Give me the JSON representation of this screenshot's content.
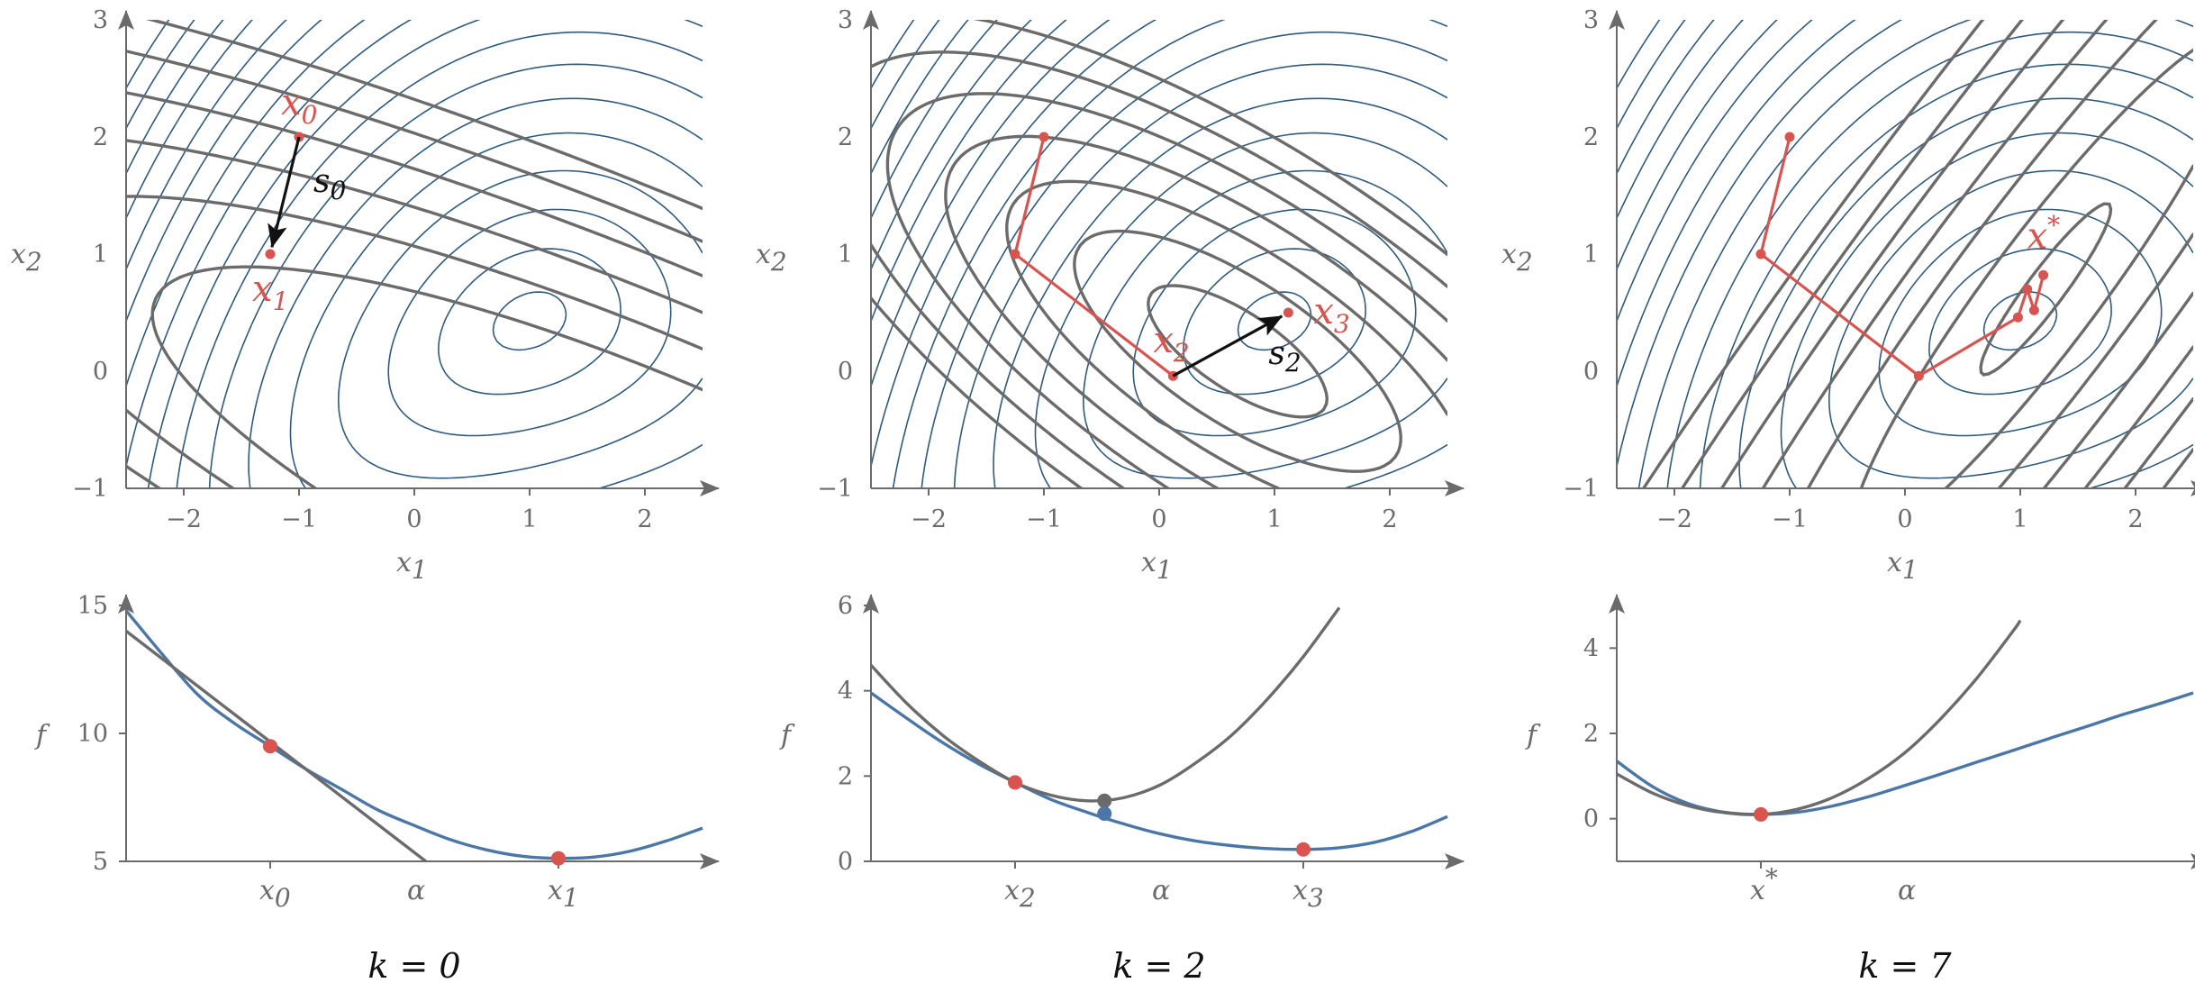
{
  "colors": {
    "contour": "#2e5a80",
    "model": "#6b6b6b",
    "path": "#d9534f",
    "function": "#4a76a8",
    "axis": "#6b6b6b"
  },
  "chart_data": [
    {
      "type": "contour",
      "panel": "top-left",
      "xlabel": "x1",
      "ylabel": "x2",
      "xlim": [
        -2.5,
        2.5
      ],
      "ylim": [
        -1,
        3
      ],
      "xticks": [
        "−2",
        "−1",
        "0",
        "1",
        "2"
      ],
      "yticks": [
        "−1",
        "0",
        "1",
        "2",
        "3"
      ],
      "path": [
        [
          -1.0,
          2.0
        ],
        [
          -1.25,
          1.0
        ]
      ],
      "point_labels": [
        {
          "text": "x",
          "sub": "0",
          "x": -1.0,
          "y": 2.0
        },
        {
          "text": "x",
          "sub": "1",
          "x": -1.25,
          "y": 1.0
        }
      ],
      "step_arrow": {
        "label": "s",
        "sub": "0",
        "from": [
          -1.0,
          2.0
        ],
        "to": [
          -1.25,
          1.0
        ]
      },
      "model": {
        "center": [
          2.2,
          -1.3
        ],
        "hessian": [
          [
            0.48,
            0.8
          ],
          [
            0.8,
            2.0
          ]
        ]
      }
    },
    {
      "type": "contour",
      "panel": "top-middle",
      "xlabel": "x1",
      "ylabel": "x2",
      "xlim": [
        -2.5,
        2.5
      ],
      "ylim": [
        -1,
        3
      ],
      "xticks": [
        "−2",
        "−1",
        "0",
        "1",
        "2"
      ],
      "yticks": [
        "−1",
        "0",
        "1",
        "2",
        "3"
      ],
      "path": [
        [
          -1.0,
          2.0
        ],
        [
          -1.25,
          1.0
        ],
        [
          0.12,
          -0.04
        ],
        [
          1.12,
          0.5
        ]
      ],
      "point_labels": [
        {
          "text": "x",
          "sub": "2",
          "x": 0.12,
          "y": -0.04
        },
        {
          "text": "x",
          "sub": "3",
          "x": 1.12,
          "y": 0.5
        }
      ],
      "step_arrow": {
        "label": "s",
        "sub": "2",
        "from": [
          0.12,
          -0.04
        ],
        "to": [
          1.12,
          0.5
        ]
      },
      "model": {
        "center": [
          0.68,
          0.17
        ],
        "hessian": [
          [
            1.05,
            1.05
          ],
          [
            1.05,
            2.0
          ]
        ]
      }
    },
    {
      "type": "contour",
      "panel": "top-right",
      "xlabel": "x1",
      "ylabel": "x2",
      "xlim": [
        -2.5,
        2.5
      ],
      "ylim": [
        -1,
        3
      ],
      "xticks": [
        "−2",
        "−1",
        "0",
        "1",
        "2"
      ],
      "yticks": [
        "−1",
        "0",
        "1",
        "2",
        "3"
      ],
      "path": [
        [
          -1.0,
          2.0
        ],
        [
          -1.25,
          1.0
        ],
        [
          0.12,
          -0.04
        ],
        [
          0.98,
          0.46
        ],
        [
          1.06,
          0.7
        ],
        [
          1.12,
          0.52
        ],
        [
          1.2,
          0.82
        ]
      ],
      "point_labels": [
        {
          "text": "x*",
          "sub": "",
          "x": 1.2,
          "y": 0.82
        }
      ],
      "model": {
        "center": [
          1.22,
          0.7
        ],
        "hessian": [
          [
            2.0,
            -1.45
          ],
          [
            -1.45,
            1.2
          ]
        ]
      }
    },
    {
      "type": "line",
      "panel": "bottom-left",
      "ylabel": "f",
      "xlabel": "α",
      "ylim": [
        5,
        15
      ],
      "yticks": [
        "5",
        "10",
        "15"
      ],
      "xtick_labels": [
        {
          "text": "x",
          "sub": "0",
          "x": 0.25
        },
        {
          "text": "x",
          "sub": "1",
          "x": 0.75
        }
      ],
      "alpha_label_x": 0.5,
      "series": [
        {
          "role": "function",
          "points": [
            [
              0,
              14.8
            ],
            [
              0.0625,
              13.1
            ],
            [
              0.125,
              11.5
            ],
            [
              0.1875,
              10.4
            ],
            [
              0.25,
              9.5
            ],
            [
              0.3125,
              8.6
            ],
            [
              0.375,
              7.8
            ],
            [
              0.4375,
              7.0
            ],
            [
              0.5,
              6.4
            ],
            [
              0.5625,
              5.85
            ],
            [
              0.625,
              5.45
            ],
            [
              0.6875,
              5.2
            ],
            [
              0.75,
              5.12
            ],
            [
              0.8125,
              5.17
            ],
            [
              0.875,
              5.4
            ],
            [
              0.9375,
              5.8
            ],
            [
              1,
              6.3
            ]
          ]
        },
        {
          "role": "model",
          "points": [
            [
              0,
              14.0
            ],
            [
              0.52,
              5.0
            ]
          ]
        }
      ],
      "markers": [
        {
          "x": 0.25,
          "y": 9.5,
          "role": "path"
        },
        {
          "x": 0.75,
          "y": 5.12,
          "role": "path"
        }
      ]
    },
    {
      "type": "line",
      "panel": "bottom-middle",
      "ylabel": "f",
      "xlabel": "α",
      "ylim": [
        0,
        6
      ],
      "yticks": [
        "0",
        "2",
        "4",
        "6"
      ],
      "xtick_labels": [
        {
          "text": "x",
          "sub": "2",
          "x": 0.25
        },
        {
          "text": "x",
          "sub": "3",
          "x": 0.75
        }
      ],
      "alpha_label_x": 0.5,
      "series": [
        {
          "role": "function",
          "points": [
            [
              0,
              3.95
            ],
            [
              0.0625,
              3.35
            ],
            [
              0.125,
              2.78
            ],
            [
              0.1875,
              2.28
            ],
            [
              0.25,
              1.85
            ],
            [
              0.3125,
              1.45
            ],
            [
              0.375,
              1.15
            ],
            [
              0.4375,
              0.88
            ],
            [
              0.5,
              0.65
            ],
            [
              0.5625,
              0.48
            ],
            [
              0.625,
              0.37
            ],
            [
              0.6875,
              0.3
            ],
            [
              0.75,
              0.28
            ],
            [
              0.8125,
              0.32
            ],
            [
              0.875,
              0.45
            ],
            [
              0.9375,
              0.7
            ],
            [
              1,
              1.05
            ]
          ]
        },
        {
          "role": "model",
          "points": [
            [
              0,
              4.6
            ],
            [
              0.0625,
              3.7
            ],
            [
              0.125,
              2.95
            ],
            [
              0.1875,
              2.35
            ],
            [
              0.25,
              1.85
            ],
            [
              0.3125,
              1.55
            ],
            [
              0.375,
              1.42
            ],
            [
              0.4375,
              1.49
            ],
            [
              0.5,
              1.78
            ],
            [
              0.5625,
              2.3
            ],
            [
              0.625,
              2.95
            ],
            [
              0.6875,
              3.8
            ],
            [
              0.75,
              4.8
            ],
            [
              0.8125,
              5.95
            ]
          ]
        }
      ],
      "markers": [
        {
          "x": 0.25,
          "y": 1.85,
          "role": "path"
        },
        {
          "x": 0.75,
          "y": 0.28,
          "role": "path"
        },
        {
          "x": 0.405,
          "y": 1.42,
          "role": "model"
        },
        {
          "x": 0.405,
          "y": 1.12,
          "role": "function"
        }
      ]
    },
    {
      "type": "line",
      "panel": "bottom-right",
      "ylabel": "f",
      "xlabel": "α",
      "ylim": [
        -1,
        5
      ],
      "yticks": [
        "0",
        "2",
        "4"
      ],
      "xtick_labels": [
        {
          "text": "x*",
          "sub": "",
          "x": 0.25
        }
      ],
      "alpha_label_x": 0.5,
      "series": [
        {
          "role": "function",
          "points": [
            [
              0,
              1.35
            ],
            [
              0.0625,
              0.75
            ],
            [
              0.125,
              0.35
            ],
            [
              0.1875,
              0.15
            ],
            [
              0.25,
              0.1
            ],
            [
              0.3125,
              0.15
            ],
            [
              0.375,
              0.3
            ],
            [
              0.4375,
              0.52
            ],
            [
              0.5,
              0.78
            ],
            [
              0.5625,
              1.05
            ],
            [
              0.625,
              1.33
            ],
            [
              0.6875,
              1.6
            ],
            [
              0.75,
              1.88
            ],
            [
              0.8125,
              2.15
            ],
            [
              0.875,
              2.43
            ],
            [
              0.9375,
              2.68
            ],
            [
              1,
              2.95
            ]
          ]
        },
        {
          "role": "model",
          "points": [
            [
              0,
              1.05
            ],
            [
              0.0625,
              0.6
            ],
            [
              0.125,
              0.3
            ],
            [
              0.1875,
              0.14
            ],
            [
              0.25,
              0.1
            ],
            [
              0.3125,
              0.22
            ],
            [
              0.375,
              0.5
            ],
            [
              0.4375,
              0.95
            ],
            [
              0.5,
              1.55
            ],
            [
              0.5625,
              2.35
            ],
            [
              0.625,
              3.3
            ],
            [
              0.6875,
              4.4
            ],
            [
              0.7,
              4.65
            ]
          ]
        }
      ],
      "markers": [
        {
          "x": 0.25,
          "y": 0.1,
          "role": "path"
        }
      ]
    }
  ],
  "captions": [
    "k = 0",
    "k = 2",
    "k = 7"
  ]
}
